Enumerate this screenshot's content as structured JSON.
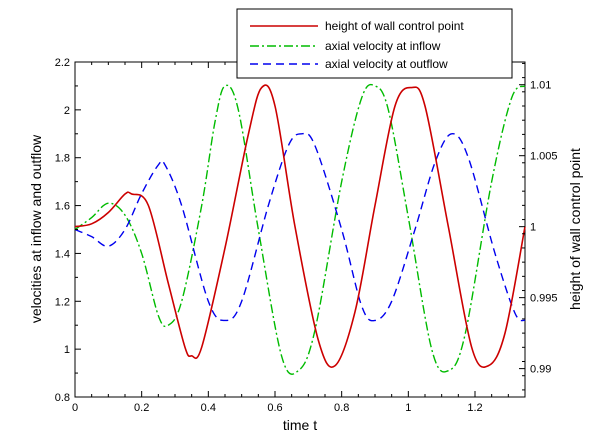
{
  "chart_data": {
    "type": "line",
    "xlabel": "time t",
    "ylabel_left": "velocities at inflow and outflow",
    "ylabel_right": "height of wall control point",
    "xlim": [
      0,
      1.35
    ],
    "ylim_left": [
      0.8,
      2.2
    ],
    "ylim_right": [
      0.988,
      1.0116
    ],
    "x_ticks": [
      0,
      0.2,
      0.4,
      0.6,
      0.8,
      1,
      1.2
    ],
    "x_tick_labels": [
      "0",
      "0.2",
      "0.4",
      "0.6",
      "0.8",
      "1",
      "1.2"
    ],
    "y_left_ticks": [
      0.8,
      1,
      1.2,
      1.4,
      1.6,
      1.8,
      2,
      2.2
    ],
    "y_left_tick_labels": [
      "0.8",
      "1",
      "1.2",
      "1.4",
      "1.6",
      "1.8",
      "2",
      "2.2"
    ],
    "y_right_ticks": [
      0.99,
      0.995,
      1,
      1.005,
      1.01
    ],
    "y_right_tick_labels": [
      "0.99",
      "0.995",
      "1",
      "1.005",
      "1.01"
    ],
    "grid": false,
    "legend_position": "top-right",
    "series": [
      {
        "name": "height of wall control point",
        "axis": "right",
        "color": "#cc0000",
        "dash": "solid",
        "points": [
          [
            0,
            1.0
          ],
          [
            0.05,
            1.0002
          ],
          [
            0.1,
            1.001
          ],
          [
            0.15,
            1.0023
          ],
          [
            0.17,
            1.0023
          ],
          [
            0.22,
            1.0015
          ],
          [
            0.28,
            0.996
          ],
          [
            0.33,
            0.9915
          ],
          [
            0.35,
            0.9909
          ],
          [
            0.38,
            0.9915
          ],
          [
            0.45,
            0.9985
          ],
          [
            0.52,
            1.0065
          ],
          [
            0.56,
            1.0098
          ],
          [
            0.6,
            1.0085
          ],
          [
            0.66,
            1.0
          ],
          [
            0.73,
            0.992
          ],
          [
            0.78,
            0.9902
          ],
          [
            0.84,
            0.994
          ],
          [
            0.9,
            1.0015
          ],
          [
            0.96,
            1.0085
          ],
          [
            1.01,
            1.0098
          ],
          [
            1.05,
            1.0085
          ],
          [
            1.12,
            1.0
          ],
          [
            1.19,
            0.9915
          ],
          [
            1.24,
            0.9902
          ],
          [
            1.29,
            0.9925
          ],
          [
            1.35,
            1.0
          ]
        ]
      },
      {
        "name": "axial velocity at inflow",
        "axis": "left",
        "color": "#00bb00",
        "dash": "dashdot",
        "points": [
          [
            0,
            1.5
          ],
          [
            0.05,
            1.55
          ],
          [
            0.1,
            1.61
          ],
          [
            0.15,
            1.56
          ],
          [
            0.2,
            1.4
          ],
          [
            0.25,
            1.14
          ],
          [
            0.28,
            1.1
          ],
          [
            0.32,
            1.2
          ],
          [
            0.38,
            1.6
          ],
          [
            0.42,
            1.95
          ],
          [
            0.45,
            2.1
          ],
          [
            0.49,
            2.0
          ],
          [
            0.55,
            1.5
          ],
          [
            0.62,
            0.97
          ],
          [
            0.67,
            0.91
          ],
          [
            0.72,
            1.08
          ],
          [
            0.8,
            1.7
          ],
          [
            0.86,
            2.05
          ],
          [
            0.9,
            2.1
          ],
          [
            0.94,
            2.0
          ],
          [
            1.0,
            1.55
          ],
          [
            1.07,
            1.0
          ],
          [
            1.12,
            0.91
          ],
          [
            1.17,
            1.06
          ],
          [
            1.25,
            1.7
          ],
          [
            1.31,
            2.05
          ],
          [
            1.35,
            2.1
          ]
        ]
      },
      {
        "name": "axial velocity at outflow",
        "axis": "left",
        "color": "#0000ee",
        "dash": "dashed",
        "points": [
          [
            0,
            1.5
          ],
          [
            0.05,
            1.47
          ],
          [
            0.1,
            1.43
          ],
          [
            0.15,
            1.5
          ],
          [
            0.2,
            1.65
          ],
          [
            0.25,
            1.77
          ],
          [
            0.27,
            1.77
          ],
          [
            0.32,
            1.6
          ],
          [
            0.4,
            1.2
          ],
          [
            0.45,
            1.12
          ],
          [
            0.5,
            1.2
          ],
          [
            0.58,
            1.6
          ],
          [
            0.64,
            1.85
          ],
          [
            0.68,
            1.9
          ],
          [
            0.72,
            1.85
          ],
          [
            0.8,
            1.5
          ],
          [
            0.86,
            1.18
          ],
          [
            0.9,
            1.12
          ],
          [
            0.95,
            1.2
          ],
          [
            1.02,
            1.5
          ],
          [
            1.08,
            1.78
          ],
          [
            1.13,
            1.9
          ],
          [
            1.18,
            1.8
          ],
          [
            1.26,
            1.4
          ],
          [
            1.32,
            1.15
          ],
          [
            1.35,
            1.12
          ]
        ]
      }
    ]
  }
}
